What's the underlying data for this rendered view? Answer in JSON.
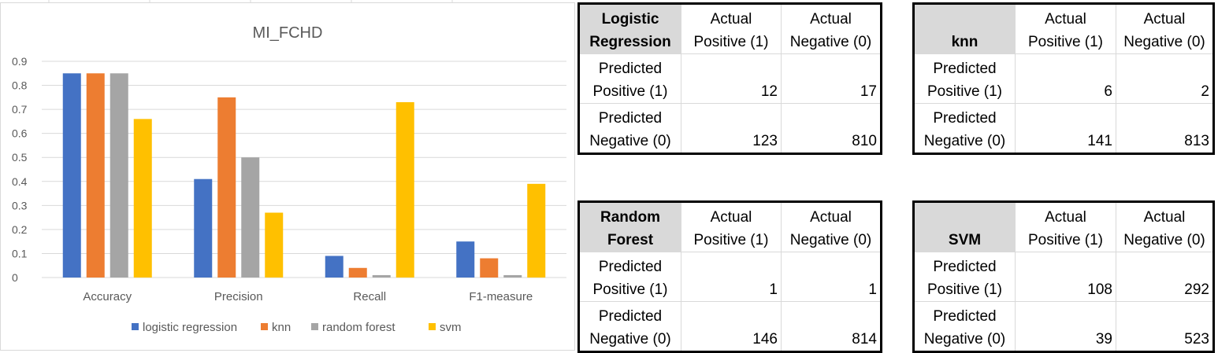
{
  "chart_data": {
    "type": "bar",
    "title": "MI_FCHD",
    "categories": [
      "Accuracy",
      "Precision",
      "Recall",
      "F1-measure"
    ],
    "series": [
      {
        "name": "logistic regression",
        "color": "#4472c4",
        "values": [
          0.85,
          0.41,
          0.09,
          0.15
        ]
      },
      {
        "name": "knn",
        "color": "#ed7d31",
        "values": [
          0.85,
          0.75,
          0.04,
          0.08
        ]
      },
      {
        "name": "random forest",
        "color": "#a5a5a5",
        "values": [
          0.85,
          0.5,
          0.01,
          0.01
        ]
      },
      {
        "name": "svm",
        "color": "#ffc000",
        "values": [
          0.66,
          0.27,
          0.73,
          0.39
        ]
      }
    ],
    "ylim": [
      0,
      0.9
    ],
    "yticks": [
      "0",
      "0.1",
      "0.2",
      "0.3",
      "0.4",
      "0.5",
      "0.6",
      "0.7",
      "0.8",
      "0.9"
    ],
    "grid": true,
    "legend": "bottom"
  },
  "tables": [
    {
      "title": [
        "Logistic",
        "Regression"
      ],
      "col1": [
        "Actual",
        "Positive (1)"
      ],
      "col2": [
        "Actual",
        "Negative (0)"
      ],
      "row1": [
        "Predicted",
        "Positive (1)"
      ],
      "row2": [
        "Predicted",
        "Negative (0)"
      ],
      "values": [
        [
          "12",
          "17"
        ],
        [
          "123",
          "810"
        ]
      ]
    },
    {
      "title": [
        "",
        "knn"
      ],
      "col1": [
        "Actual",
        "Positive (1)"
      ],
      "col2": [
        "Actual",
        "Negative (0)"
      ],
      "row1": [
        "Predicted",
        "Positive (1)"
      ],
      "row2": [
        "Predicted",
        "Negative (0)"
      ],
      "values": [
        [
          "6",
          "2"
        ],
        [
          "141",
          "813"
        ]
      ]
    },
    {
      "title": [
        "Random",
        "Forest"
      ],
      "col1": [
        "Actual",
        "Positive (1)"
      ],
      "col2": [
        "Actual",
        "Negative (0)"
      ],
      "row1": [
        "Predicted",
        "Positive (1)"
      ],
      "row2": [
        "Predicted",
        "Negative (0)"
      ],
      "values": [
        [
          "1",
          "1"
        ],
        [
          "146",
          "814"
        ]
      ]
    },
    {
      "title": [
        "",
        "SVM"
      ],
      "col1": [
        "Actual",
        "Positive (1)"
      ],
      "col2": [
        "Actual",
        "Negative (0)"
      ],
      "row1": [
        "Predicted",
        "Positive (1)"
      ],
      "row2": [
        "Predicted",
        "Negative (0)"
      ],
      "values": [
        [
          "108",
          "292"
        ],
        [
          "39",
          "523"
        ]
      ]
    }
  ]
}
